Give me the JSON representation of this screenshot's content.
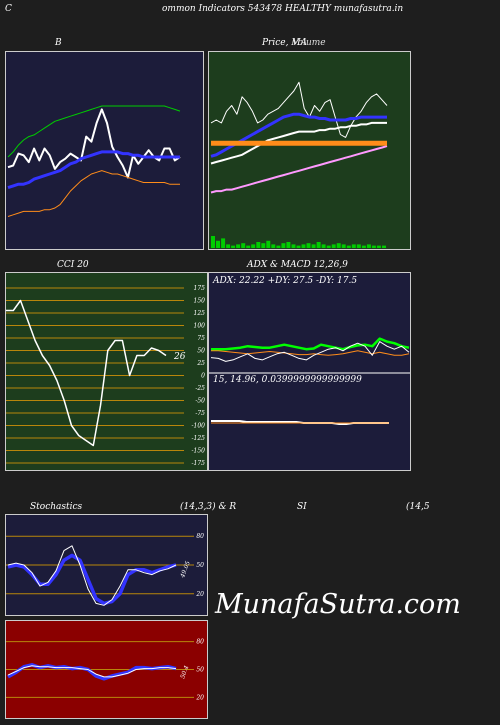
{
  "header": {
    "left_letter": "C",
    "title": "ommon  Indicators 543478 HEALTHY munafasutra.in"
  },
  "watermark": "MunafaSutra.com",
  "colors": {
    "bb_bg": "#1c1c3a",
    "price_bg": "#1d3d1d",
    "cci_bg": "#1d3d1d",
    "adx_bg": "#1c1c3a",
    "stoch_bg": "#1c1c3a",
    "rsi_bg": "#8b0000"
  },
  "chart_data": [
    {
      "id": "bollinger",
      "type": "line",
      "title": "B",
      "ylim": [
        0,
        100
      ],
      "series": [
        {
          "color": "#00cc00",
          "values": [
            50,
            53,
            57,
            60,
            62,
            63,
            65,
            67,
            69,
            71,
            72,
            73,
            74,
            75,
            76,
            77,
            78,
            79,
            80,
            80,
            80,
            80,
            80,
            80,
            80,
            80,
            80,
            80,
            80,
            80,
            80,
            79,
            78,
            77
          ]
        },
        {
          "color": "#ffffff",
          "values": [
            44,
            45,
            52,
            51,
            47,
            55,
            48,
            55,
            51,
            43,
            47,
            49,
            52,
            50,
            48,
            62,
            59,
            70,
            78,
            70,
            56,
            50,
            45,
            38,
            51,
            46,
            50,
            54,
            50,
            48,
            55,
            55,
            48,
            50
          ]
        },
        {
          "color": "#3333ff",
          "values": [
            32,
            33,
            34,
            34,
            35,
            37,
            38,
            39,
            40,
            41,
            42,
            44,
            46,
            47,
            49,
            50,
            51,
            52,
            53,
            53,
            53,
            53,
            52,
            52,
            51,
            51,
            50,
            50,
            50,
            50,
            50,
            50,
            50,
            50
          ]
        },
        {
          "color": "#ff8c1a",
          "values": [
            15,
            16,
            17,
            18,
            18,
            18,
            18,
            19,
            19,
            20,
            22,
            26,
            30,
            33,
            36,
            38,
            40,
            41,
            42,
            41,
            40,
            40,
            39,
            38,
            37,
            36,
            35,
            35,
            35,
            35,
            35,
            34,
            34,
            34
          ]
        }
      ]
    },
    {
      "id": "price_ma",
      "type": "line",
      "title": "Price,  MA",
      "overlay_label": "Volume",
      "ylim": [
        0,
        100
      ],
      "series": [
        {
          "color": "#ffffff",
          "values": [
            58,
            60,
            58,
            66,
            70,
            64,
            76,
            72,
            66,
            58,
            60,
            64,
            66,
            68,
            72,
            76,
            80,
            86,
            68,
            62,
            70,
            66,
            72,
            74,
            62,
            50,
            48,
            56,
            62,
            66,
            72,
            76,
            78,
            74,
            70
          ]
        },
        {
          "color": "#3333ff",
          "values": [
            35,
            36,
            38,
            40,
            42,
            44,
            46,
            48,
            50,
            52,
            54,
            56,
            58,
            60,
            62,
            63,
            64,
            64,
            63,
            62,
            62,
            61,
            61,
            60,
            60,
            60,
            60,
            61,
            61,
            62,
            62,
            62,
            62,
            62,
            62
          ]
        },
        {
          "color": "#ffffff",
          "values": [
            30,
            31,
            32,
            33,
            34,
            35,
            36,
            38,
            40,
            42,
            44,
            46,
            47,
            48,
            49,
            50,
            51,
            52,
            52,
            52,
            52,
            53,
            53,
            54,
            54,
            55,
            55,
            56,
            56,
            57,
            57,
            58,
            58,
            58,
            58
          ]
        },
        {
          "color": "#ff99ff",
          "values": [
            10,
            11,
            11,
            12,
            12,
            13,
            14,
            15,
            16,
            17,
            18,
            19,
            20,
            21,
            22,
            23,
            24,
            25,
            26,
            27,
            28,
            29,
            30,
            31,
            32,
            33,
            34,
            35,
            36,
            37,
            38,
            39,
            40,
            41,
            42
          ]
        },
        {
          "color": "#ff8c1a",
          "values": [
            44,
            44,
            44,
            44,
            44,
            44,
            44,
            44,
            44,
            44,
            44,
            44,
            44,
            44,
            44,
            44,
            44,
            44,
            44,
            44,
            44,
            44,
            44,
            44,
            44,
            44,
            44,
            44,
            44,
            44,
            44,
            44,
            44,
            44,
            44
          ]
        }
      ],
      "volume": [
        10,
        6,
        8,
        3,
        2,
        3,
        4,
        2,
        3,
        5,
        4,
        6,
        3,
        2,
        4,
        5,
        3,
        2,
        3,
        4,
        3,
        5,
        3,
        2,
        3,
        4,
        3,
        2,
        3,
        3,
        2,
        3,
        2,
        2,
        2
      ]
    },
    {
      "id": "cci",
      "type": "line",
      "title": "CCI 20",
      "current_label": "26",
      "ylim": [
        -175,
        175
      ],
      "ticks": [
        "175",
        "150",
        "125",
        "100",
        "75",
        "50",
        "25",
        "0",
        "-25",
        "-50",
        "-75",
        "-100",
        "-125",
        "-150",
        "-175"
      ],
      "series": [
        {
          "color": "#ffffff",
          "values": [
            130,
            130,
            150,
            110,
            70,
            40,
            20,
            -10,
            -50,
            -100,
            -120,
            -130,
            -140,
            -60,
            50,
            70,
            70,
            0,
            40,
            40,
            55,
            50,
            40
          ]
        }
      ]
    },
    {
      "id": "adx_macd",
      "type": "line",
      "title": "ADX  & MACD 12,26,9",
      "adx_text": "ADX: 22.22  +DY: 27.5 -DY: 17.5",
      "macd_text": "15,  14.96,  0.0399999999999999",
      "ylim": [
        0,
        100
      ],
      "series": [
        {
          "color": "#00ff00",
          "values": [
            26,
            26,
            26,
            27,
            28,
            30,
            29,
            28,
            28,
            30,
            32,
            30,
            28,
            26,
            27,
            32,
            30,
            28,
            26,
            29,
            31,
            32,
            30,
            40,
            36,
            34,
            30,
            28
          ]
        },
        {
          "color": "#ff8c1a",
          "values": [
            24,
            24,
            23,
            22,
            21,
            20,
            21,
            22,
            23,
            22,
            21,
            20,
            19,
            19,
            20,
            19,
            18,
            19,
            20,
            22,
            24,
            22,
            20,
            22,
            20,
            18,
            18,
            20
          ]
        },
        {
          "color": "#ffffff",
          "values": [
            15,
            14,
            10,
            12,
            16,
            20,
            14,
            12,
            16,
            20,
            22,
            18,
            14,
            12,
            18,
            22,
            26,
            28,
            24,
            30,
            34,
            30,
            18,
            36,
            30,
            26,
            30,
            22
          ]
        }
      ],
      "macd_series": [
        {
          "color": "#ffffff",
          "values": [
            2,
            2,
            2,
            2,
            2,
            1,
            1,
            1,
            1,
            1,
            1,
            1,
            1,
            0,
            0,
            0,
            0,
            0,
            -1,
            -1,
            0,
            0,
            0,
            0,
            0,
            0
          ]
        },
        {
          "color": "#ff8c1a",
          "values": [
            0,
            0,
            0,
            0,
            0,
            0,
            0,
            0,
            0,
            0,
            0,
            0,
            0,
            0,
            0,
            0,
            0,
            0,
            0,
            0,
            0,
            0,
            0,
            0,
            0,
            0
          ]
        }
      ]
    },
    {
      "id": "stochastics",
      "type": "line",
      "title": "Stochastics",
      "params": "(14,3,3) & R",
      "current_label": "49.05",
      "ylim": [
        0,
        100
      ],
      "ticks": [
        "80",
        "50",
        "20"
      ],
      "series": [
        {
          "color": "#3333ff",
          "values": [
            48,
            50,
            48,
            40,
            30,
            30,
            40,
            55,
            60,
            55,
            35,
            15,
            10,
            12,
            20,
            40,
            45,
            45,
            42,
            45,
            48,
            50
          ]
        },
        {
          "color": "#ffffff",
          "values": [
            50,
            52,
            50,
            42,
            28,
            32,
            44,
            65,
            70,
            50,
            25,
            10,
            8,
            14,
            28,
            45,
            45,
            42,
            40,
            44,
            46,
            50
          ]
        }
      ]
    },
    {
      "id": "rsi",
      "type": "line",
      "title": "SI",
      "params": "(14,5",
      "current_label": "50.4",
      "ylim": [
        0,
        100
      ],
      "ticks": [
        "80",
        "50",
        "20"
      ],
      "series": [
        {
          "color": "#3333ff",
          "values": [
            42,
            47,
            53,
            55,
            52,
            54,
            52,
            53,
            51,
            52,
            50,
            43,
            40,
            43,
            45,
            47,
            52,
            52,
            51,
            52,
            53,
            51
          ]
        },
        {
          "color": "#ffffff",
          "values": [
            44,
            48,
            52,
            54,
            53,
            53,
            52,
            52,
            52,
            51,
            50,
            45,
            42,
            42,
            44,
            46,
            50,
            51,
            51,
            52,
            52,
            51
          ]
        }
      ]
    }
  ]
}
